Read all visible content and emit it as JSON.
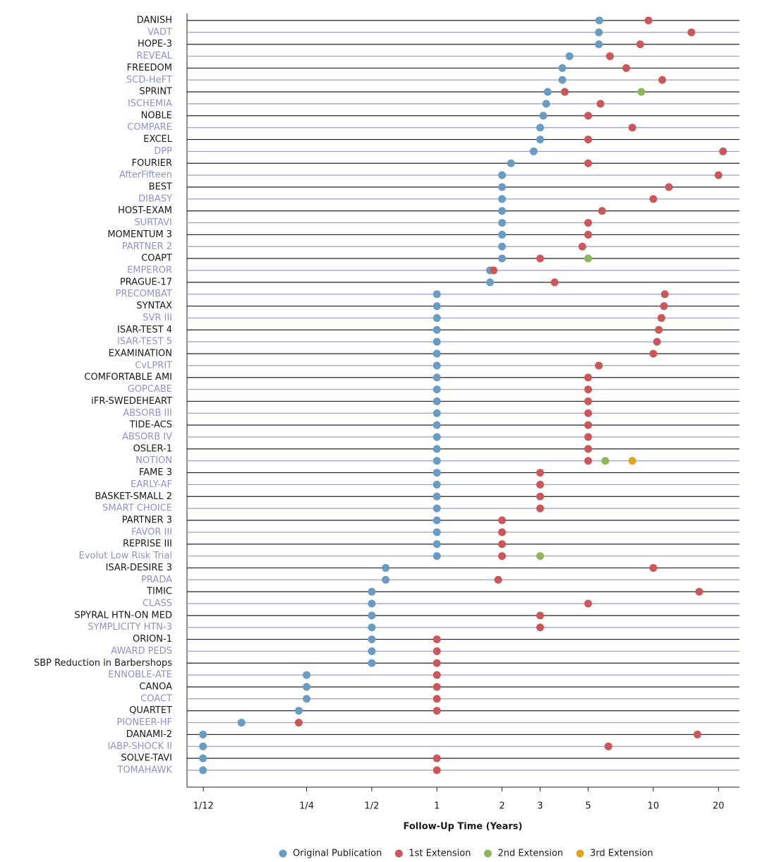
{
  "chart_data": {
    "type": "dot",
    "x_label": "Follow-Up Time (Years)",
    "x_scale": "log",
    "xlim": [
      0.07,
      25
    ],
    "xticks": [
      {
        "value": 0.0833,
        "label": "1/12"
      },
      {
        "value": 0.25,
        "label": "1/4"
      },
      {
        "value": 0.5,
        "label": "1/2"
      },
      1,
      2,
      3,
      5,
      10,
      20
    ],
    "row_colors": [
      "#1a1a1a",
      "#8f92c9"
    ],
    "line_colors": [
      "#222222",
      "#9a9cd0"
    ],
    "legend": "bottom",
    "categories": [
      "DANISH",
      "VADT",
      "HOPE-3",
      "REVEAL",
      "FREEDOM",
      "SCD-HeFT",
      "SPRINT",
      "ISCHEMIA",
      "NOBLE",
      "COMPARE",
      "EXCEL",
      "DPP",
      "FOURIER",
      "AfterFifteen",
      "BEST",
      "DIBASY",
      "HOST-EXAM",
      "SURTAVI",
      "MOMENTUM 3",
      "PARTNER 2",
      "COAPT",
      "EMPEROR",
      "PRAGUE-17",
      "PRECOMBAT",
      "SYNTAX",
      "SVR III",
      "ISAR-TEST 4",
      "ISAR-TEST 5",
      "EXAMINATION",
      "CvLPRIT",
      "COMFORTABLE AMI",
      "GOPCABE",
      "iFR-SWEDEHEART",
      "ABSORB III",
      "TIDE-ACS",
      "ABSORB IV",
      "OSLER-1",
      "NOTION",
      "FAME 3",
      "EARLY-AF",
      "BASKET-SMALL 2",
      "SMART CHOICE",
      "PARTNER 3",
      "FAVOR III",
      "REPRISE III",
      "Evolut Low Risk Trial",
      "ISAR-DESIRE 3",
      "PRADA",
      "TIMIC",
      "CLASS",
      "SPYRAL HTN-ON MED",
      "SYMPLICITY HTN-3",
      "ORION-1",
      "AWARD PEDS",
      "SBP Reduction in Barbershops",
      "ENNOBLE-ATE",
      "CANOA",
      "COACT",
      "QUARTET",
      "PIONEER-HF",
      "DANAMI-2",
      "IABP-SHOCK II",
      "SOLVE-TAVI",
      "TOMAHAWK"
    ],
    "series": [
      {
        "name": "Original Publication",
        "color": "#6a9bc3",
        "values": [
          5.63,
          5.6,
          5.6,
          4.1,
          3.8,
          3.8,
          3.25,
          3.2,
          3.1,
          3,
          3,
          2.8,
          2.2,
          2,
          2,
          2,
          2,
          2,
          2,
          2,
          2,
          1.76,
          1.76,
          1,
          1,
          1,
          1,
          1,
          1,
          1,
          1,
          1,
          1,
          1,
          1,
          1,
          1,
          1,
          1,
          1,
          1,
          1,
          1,
          1,
          1,
          1,
          0.58,
          0.58,
          0.5,
          0.5,
          0.5,
          0.5,
          0.5,
          0.5,
          0.5,
          0.25,
          0.25,
          0.25,
          0.23,
          0.125,
          0.083,
          0.083,
          0.083,
          0.083
        ]
      },
      {
        "name": "1st Extension",
        "color": "#c9585a",
        "values": [
          9.5,
          15,
          8.7,
          6.3,
          7.5,
          11,
          3.9,
          5.7,
          5,
          8,
          5,
          21,
          5,
          20,
          11.8,
          10,
          5.8,
          5,
          5,
          4.7,
          3,
          1.83,
          3.5,
          11.3,
          11.2,
          10.9,
          10.6,
          10.4,
          10,
          5.6,
          5,
          5,
          5,
          5,
          5,
          5,
          5,
          5,
          3,
          3,
          3,
          3,
          2,
          2,
          2,
          2,
          10,
          1.92,
          16.3,
          5,
          3,
          3,
          1,
          1,
          1,
          1,
          1,
          1,
          1,
          0.23,
          16,
          6.2,
          1,
          1
        ]
      },
      {
        "name": "2nd Extension",
        "color": "#8db65a",
        "values": [
          null,
          null,
          null,
          null,
          null,
          null,
          8.8,
          null,
          null,
          null,
          null,
          null,
          null,
          null,
          null,
          null,
          null,
          null,
          null,
          null,
          5,
          null,
          null,
          null,
          null,
          null,
          null,
          null,
          null,
          null,
          null,
          null,
          null,
          null,
          null,
          null,
          null,
          6,
          null,
          null,
          null,
          null,
          null,
          null,
          null,
          3,
          null,
          null,
          null,
          null,
          null,
          null,
          null,
          null,
          null,
          null,
          null,
          null,
          null,
          null,
          null,
          null,
          null,
          null
        ]
      },
      {
        "name": "3rd Extension",
        "color": "#e0a51b",
        "values": [
          null,
          null,
          null,
          null,
          null,
          null,
          null,
          null,
          null,
          null,
          null,
          null,
          null,
          null,
          null,
          null,
          null,
          null,
          null,
          null,
          null,
          null,
          null,
          null,
          null,
          null,
          null,
          null,
          null,
          null,
          null,
          null,
          null,
          null,
          null,
          null,
          null,
          8,
          null,
          null,
          null,
          null,
          null,
          null,
          null,
          null,
          null,
          null,
          null,
          null,
          null,
          null,
          null,
          null,
          null,
          null,
          null,
          null,
          null,
          null,
          null,
          null,
          null,
          null
        ]
      }
    ]
  }
}
